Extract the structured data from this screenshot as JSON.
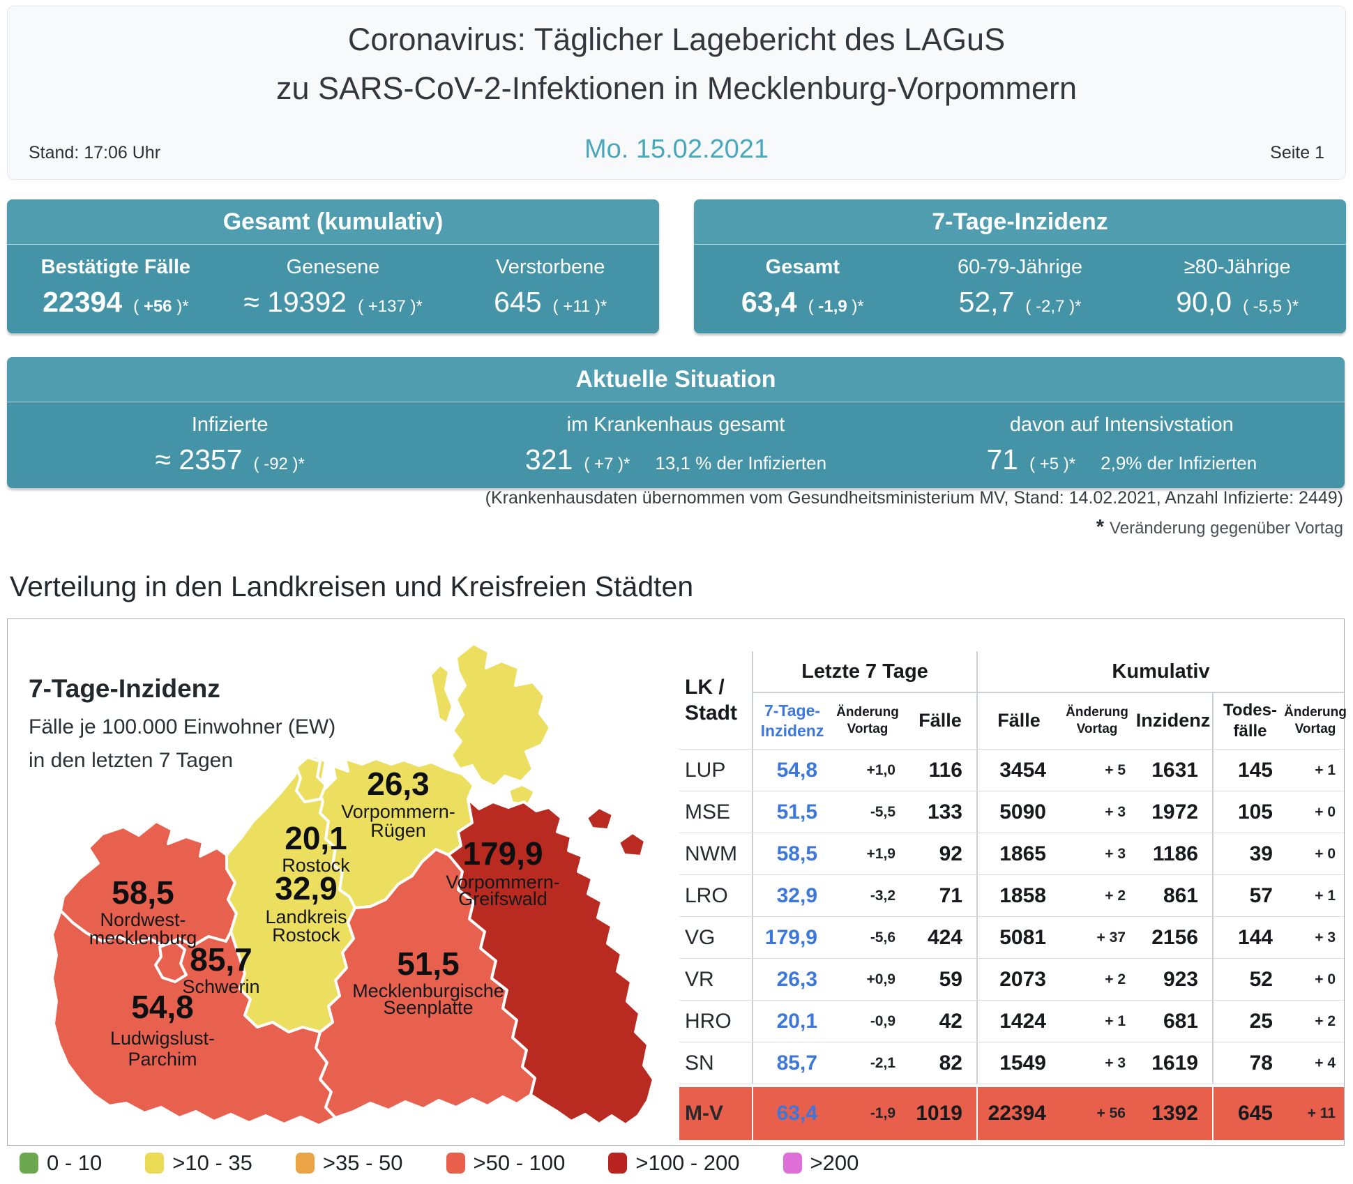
{
  "header": {
    "title_line1": "Coronavirus: Täglicher Lagebericht des LAGuS",
    "title_line2": "zu SARS-CoV-2-Infektionen in Mecklenburg-Vorpommern",
    "stand": "Stand: 17:06 Uhr",
    "date": "Mo. 15.02.2021",
    "page": "Seite 1"
  },
  "boxes": {
    "gesamt": {
      "title": "Gesamt (kumulativ)",
      "cols": [
        {
          "label": "Bestätigte Fälle",
          "value": "22394",
          "chg_pre": "( ",
          "chg_num": "+56",
          "chg_post": " )*"
        },
        {
          "label": "Genesene",
          "value": "≈ 19392",
          "chg_pre": "( ",
          "chg_num": "+137",
          "chg_post": " )*"
        },
        {
          "label": "Verstorbene",
          "value": "645",
          "chg_pre": "( ",
          "chg_num": "+11",
          "chg_post": " )*"
        }
      ]
    },
    "inzidenz": {
      "title": "7-Tage-Inzidenz",
      "cols": [
        {
          "label": "Gesamt",
          "value": "63,4",
          "chg_pre": "( ",
          "chg_num": "-1,9",
          "chg_post": " )*"
        },
        {
          "label": "60-79-Jährige",
          "value": "52,7",
          "chg_pre": "( ",
          "chg_num": "-2,7",
          "chg_post": " )*"
        },
        {
          "label": "≥80-Jährige",
          "value": "90,0",
          "chg_pre": "( ",
          "chg_num": "-5,5",
          "chg_post": " )*"
        }
      ]
    },
    "aktuell": {
      "title": "Aktuelle Situation",
      "cols": [
        {
          "label": "Infizierte",
          "value": "≈ 2357",
          "chg_pre": "( ",
          "chg_num": "-92",
          "chg_post": " )*",
          "extra": ""
        },
        {
          "label": "im Krankenhaus gesamt",
          "value": "321",
          "chg_pre": "( ",
          "chg_num": "+7",
          "chg_post": " )*",
          "extra": "13,1 % der Infizierten"
        },
        {
          "label": "davon auf Intensivstation",
          "value": "71",
          "chg_pre": "( ",
          "chg_num": "+5",
          "chg_post": " )*",
          "extra": "2,9% der Infizierten"
        }
      ]
    }
  },
  "notes": {
    "hospital": "(Krankenhausdaten übernommen vom Gesundheitsministerium MV, Stand: 14.02.2021, Anzahl Infizierte: 2449)",
    "star_sym": "*",
    "star_text": "Veränderung gegenüber Vortag"
  },
  "section_title": "Verteilung in den Landkreisen und Kreisfreien Städten",
  "map": {
    "title": "7-Tage-Inzidenz",
    "subtitle_line1": "Fälle je 100.000 Einwohner (EW)",
    "subtitle_line2": "in den letzten 7 Tagen",
    "regions": [
      {
        "id": "nwm",
        "value": "58,5",
        "name_lines": [
          "Nordwest-",
          "mecklenburg"
        ],
        "color": "#E8614E"
      },
      {
        "id": "sn",
        "value": "85,7",
        "name_lines": [
          "Schwerin"
        ],
        "color": "#E8614E"
      },
      {
        "id": "lup",
        "value": "54,8",
        "name_lines": [
          "Ludwigslust-",
          "Parchim"
        ],
        "color": "#E8614E"
      },
      {
        "id": "mse",
        "value": "51,5",
        "name_lines": [
          "Mecklenburgische",
          "Seenplatte"
        ],
        "color": "#E8614E"
      },
      {
        "id": "lro",
        "value": "32,9",
        "name_lines": [
          "Landkreis",
          "Rostock"
        ],
        "color": "#ECDF60"
      },
      {
        "id": "hro",
        "value": "20,1",
        "name_lines": [
          "Rostock"
        ],
        "color": "#ECDF60"
      },
      {
        "id": "vr",
        "value": "26,3",
        "name_lines": [
          "Vorpommern-",
          "Rügen"
        ],
        "color": "#ECDF60"
      },
      {
        "id": "vg",
        "value": "179,9",
        "name_lines": [
          "Vorpommern-",
          "Greifswald"
        ],
        "color": "#B92A20"
      }
    ]
  },
  "table": {
    "header": {
      "lk_l1": "LK /",
      "lk_l2": "Stadt",
      "group_last7": "Letzte 7 Tage",
      "group_kum": "Kumulativ",
      "inz7_l1": "7-Tage-",
      "inz7_l2": "Inzidenz",
      "chg_l1": "Änderung",
      "chg_l2": "Vortag",
      "faelle": "Fälle",
      "inzidenz": "Inzidenz",
      "todes_l1": "Todes-",
      "todes_l2": "fälle"
    },
    "rows": [
      {
        "lk": "LUP",
        "inz7": "54,8",
        "chg7": "+1,0",
        "f7": "116",
        "fk": "3454",
        "chgk": "+ 5",
        "inzk": "1631",
        "tod": "145",
        "chgt": "+ 1"
      },
      {
        "lk": "MSE",
        "inz7": "51,5",
        "chg7": "-5,5",
        "f7": "133",
        "fk": "5090",
        "chgk": "+ 3",
        "inzk": "1972",
        "tod": "105",
        "chgt": "+ 0"
      },
      {
        "lk": "NWM",
        "inz7": "58,5",
        "chg7": "+1,9",
        "f7": "92",
        "fk": "1865",
        "chgk": "+ 3",
        "inzk": "1186",
        "tod": "39",
        "chgt": "+ 0"
      },
      {
        "lk": "LRO",
        "inz7": "32,9",
        "chg7": "-3,2",
        "f7": "71",
        "fk": "1858",
        "chgk": "+ 2",
        "inzk": "861",
        "tod": "57",
        "chgt": "+ 1"
      },
      {
        "lk": "VG",
        "inz7": "179,9",
        "chg7": "-5,6",
        "f7": "424",
        "fk": "5081",
        "chgk": "+ 37",
        "inzk": "2156",
        "tod": "144",
        "chgt": "+ 3"
      },
      {
        "lk": "VR",
        "inz7": "26,3",
        "chg7": "+0,9",
        "f7": "59",
        "fk": "2073",
        "chgk": "+ 2",
        "inzk": "923",
        "tod": "52",
        "chgt": "+ 0"
      },
      {
        "lk": "HRO",
        "inz7": "20,1",
        "chg7": "-0,9",
        "f7": "42",
        "fk": "1424",
        "chgk": "+ 1",
        "inzk": "681",
        "tod": "25",
        "chgt": "+ 2"
      },
      {
        "lk": "SN",
        "inz7": "85,7",
        "chg7": "-2,1",
        "f7": "82",
        "fk": "1549",
        "chgk": "+ 3",
        "inzk": "1619",
        "tod": "78",
        "chgt": "+ 4"
      }
    ],
    "total_row": {
      "lk": "M-V",
      "inz7": "63,4",
      "chg7": "-1,9",
      "f7": "1019",
      "fk": "22394",
      "chgk": "+ 56",
      "inzk": "1392",
      "tod": "645",
      "chgt": "+ 11"
    }
  },
  "legend": {
    "items": [
      {
        "label": "0 - 10",
        "color": "#6BA850"
      },
      {
        "label": ">10 - 35",
        "color": "#EBDB54"
      },
      {
        "label": ">35 - 50",
        "color": "#EBA445"
      },
      {
        "label": ">50 - 100",
        "color": "#E8604C"
      },
      {
        "label": ">100 - 200",
        "color": "#B92420"
      },
      {
        "label": ">200",
        "color": "#DF6FD8"
      }
    ]
  },
  "colors": {
    "teal_header": "#4F9DAE",
    "teal_body": "#4593A6",
    "accent_date": "#4BA7BC",
    "table_blue": "#3C78DC",
    "row_highlight": "#E8604C"
  }
}
